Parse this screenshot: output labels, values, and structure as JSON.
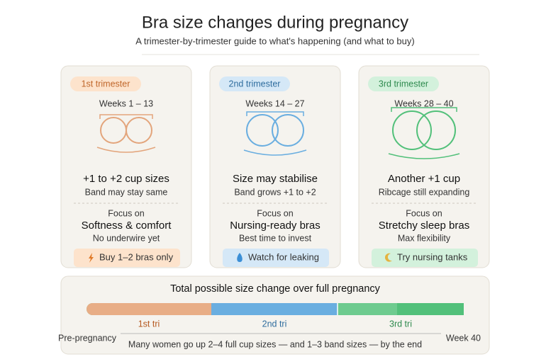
{
  "header": {
    "title": "Bra size changes during pregnancy",
    "subtitle": "A trimester-by-trimester guide to what's happening (and what to buy)"
  },
  "cards": [
    {
      "trimester": "1st trimester",
      "weeks": "Weeks 1 – 13",
      "change": "+1 to +2 cup sizes",
      "change_note": "Band may stay same",
      "focus_label": "Focus on",
      "focus": "Softness & comfort",
      "focus_note": "No underwire yet",
      "tip": "Buy 1–2 bras only"
    },
    {
      "trimester": "2nd trimester",
      "weeks": "Weeks 14 – 27",
      "change": "Size may stabilise",
      "change_note": "Band grows +1 to +2",
      "focus_label": "Focus on",
      "focus": "Nursing-ready bras",
      "focus_note": "Best time to invest",
      "tip": "Watch for leaking"
    },
    {
      "trimester": "3rd trimester",
      "weeks": "Weeks 28 – 40",
      "change": "Another +1 cup",
      "change_note": "Ribcage still expanding",
      "focus_label": "Focus on",
      "focus": "Stretchy sleep bras",
      "focus_note": "Max flexibility",
      "tip": "Try nursing tanks"
    }
  ],
  "summary": {
    "title": "Total possible size change over full pregnancy",
    "segments": [
      "1st tri",
      "2nd tri",
      "3rd tri"
    ],
    "start": "Pre-pregnancy",
    "end": "Week 40",
    "note": "Many women go up 2–4 full cup sizes — and 1–3 band sizes — by the end"
  }
}
